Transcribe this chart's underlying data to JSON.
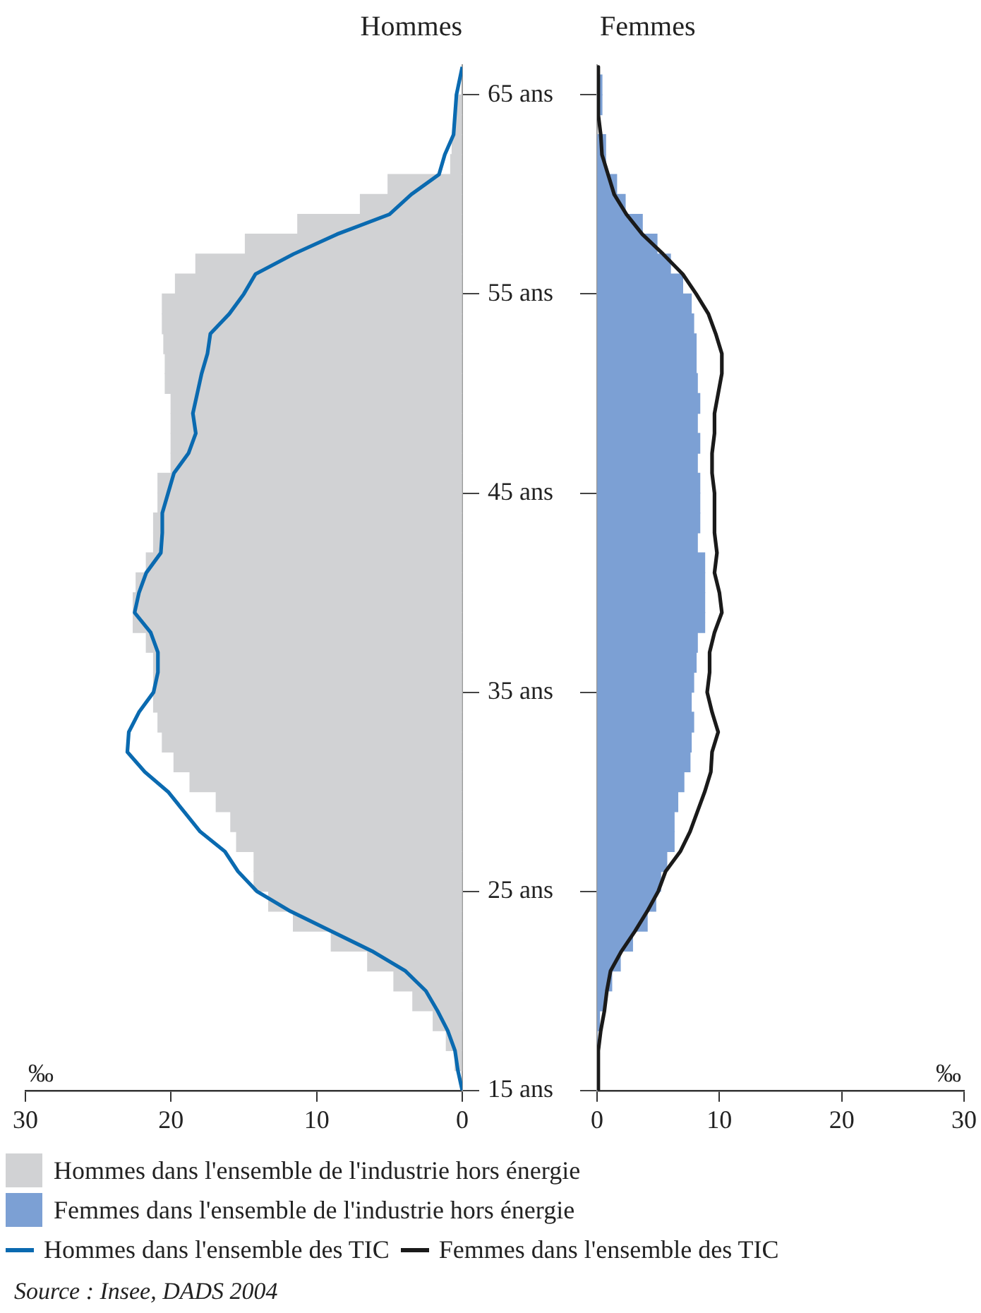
{
  "chart_data": [
    {
      "type": "bar",
      "orientation": "horizontal",
      "title": "Hommes",
      "xlabel": "‰",
      "xlim": [
        30,
        0
      ],
      "xticks": [
        0,
        10,
        20,
        30
      ],
      "ylim": [
        15,
        66.5
      ],
      "yticks": [
        {
          "value": 15,
          "label": "15 ans"
        },
        {
          "value": 25,
          "label": "25 ans"
        },
        {
          "value": 35,
          "label": "35 ans"
        },
        {
          "value": 45,
          "label": "45 ans"
        },
        {
          "value": 55,
          "label": "55 ans"
        },
        {
          "value": 65,
          "label": "65 ans"
        }
      ],
      "legend": "bottom",
      "marker": "none",
      "x": [
        64.5,
        63.5,
        62.5,
        61.5,
        60.5,
        59.5,
        58.5,
        57.5,
        56.5,
        55.5,
        54.5,
        53.5,
        52.5,
        51.5,
        50.5,
        49.5,
        48.5,
        47.5,
        46.5,
        45.5,
        44.5,
        43.5,
        42.5,
        41.5,
        40.5,
        39.5,
        38.5,
        37.5,
        36.5,
        35.5,
        34.5,
        33.5,
        32.5,
        31.5,
        30.5,
        29.5,
        28.5,
        27.5,
        26.5,
        25.5,
        24.5,
        23.5,
        22.5,
        21.5,
        20.5,
        19.5,
        18.5,
        17.5,
        16.5
      ],
      "series": [
        {
          "name": "Hommes dans l'ensemble de l'industrie hors énergie",
          "color": "#d1d2d4",
          "values": [
            0.5,
            0.6,
            0.7,
            0.8,
            5.1,
            7.0,
            11.3,
            14.9,
            18.3,
            19.7,
            20.6,
            20.6,
            20.5,
            20.4,
            20.4,
            20.0,
            20.0,
            20.0,
            20.0,
            20.9,
            20.9,
            21.2,
            21.2,
            21.7,
            22.4,
            22.6,
            22.6,
            21.7,
            21.2,
            21.2,
            21.2,
            20.9,
            20.6,
            19.8,
            18.7,
            16.9,
            15.9,
            15.5,
            14.3,
            14.3,
            13.3,
            11.6,
            9.0,
            6.5,
            4.7,
            3.4,
            2.0,
            1.1,
            0.5
          ]
        },
        {
          "type": "line",
          "name": "Hommes dans l'ensemble des TIC",
          "color": "#0a6ab0",
          "x": [
            66.4,
            65,
            64,
            63,
            62,
            61,
            60,
            59,
            58,
            57,
            56,
            55,
            54,
            53,
            52,
            51,
            50,
            49,
            48,
            47,
            46,
            45,
            44,
            43,
            42,
            41,
            40,
            39,
            38,
            37,
            36,
            35,
            34,
            33,
            32,
            31,
            30,
            29,
            28,
            27,
            26,
            25,
            24,
            23,
            22,
            21,
            20,
            19,
            18,
            17,
            16,
            15
          ],
          "values": [
            0.0,
            0.4,
            0.5,
            0.6,
            1.2,
            1.6,
            3.5,
            5.0,
            8.6,
            11.6,
            14.2,
            15.0,
            16.0,
            17.3,
            17.5,
            17.9,
            18.2,
            18.5,
            18.3,
            18.8,
            19.8,
            20.2,
            20.6,
            20.6,
            20.7,
            21.7,
            22.2,
            22.5,
            21.4,
            20.9,
            20.9,
            21.2,
            22.2,
            22.9,
            23.0,
            21.8,
            20.2,
            19.1,
            18.0,
            16.3,
            15.4,
            14.1,
            11.8,
            9.0,
            6.2,
            3.9,
            2.5,
            1.7,
            1.0,
            0.5,
            0.3,
            0.0
          ]
        }
      ],
      "annotations": [
        "Source : Insee, DADS 2004"
      ]
    },
    {
      "type": "bar",
      "orientation": "horizontal",
      "title": "Femmes",
      "xlabel": "‰",
      "xlim": [
        0,
        30
      ],
      "xticks": [
        0,
        10,
        20,
        30
      ],
      "ylim": [
        15,
        66.5
      ],
      "yticks": [
        {
          "value": 15,
          "label": null
        },
        {
          "value": 25,
          "label": null
        },
        {
          "value": 35,
          "label": null
        },
        {
          "value": 45,
          "label": null
        },
        {
          "value": 55,
          "label": null
        },
        {
          "value": 65,
          "label": null
        }
      ],
      "legend": "bottom",
      "marker": "none",
      "tick_labels": "x",
      "x": [
        65.5,
        64.5,
        63.5,
        62.5,
        61.5,
        60.5,
        59.5,
        58.5,
        57.5,
        56.5,
        55.5,
        54.5,
        53.5,
        52.5,
        51.5,
        50.5,
        49.5,
        48.5,
        47.5,
        46.5,
        45.5,
        44.5,
        43.5,
        42.5,
        41.5,
        40.5,
        39.5,
        38.5,
        37.5,
        36.5,
        35.5,
        34.5,
        33.5,
        32.5,
        31.5,
        30.5,
        29.5,
        28.5,
        27.5,
        26.5,
        25.5,
        24.5,
        23.5,
        22.5,
        21.5,
        20.5,
        19.5,
        18.5,
        17.5,
        16.5,
        15.5
      ],
      "series": [
        {
          "name": "Femmes dans l'ensemble de l'industrie hors énergie",
          "color": "#7ca0d4",
          "values": [
            0.4,
            0.4,
            null,
            0.7,
            0.7,
            1.6,
            2.3,
            3.7,
            4.9,
            6.0,
            7.0,
            7.7,
            7.9,
            8.1,
            8.1,
            8.2,
            8.4,
            8.2,
            8.4,
            8.2,
            8.4,
            8.4,
            8.4,
            8.2,
            8.8,
            8.8,
            8.8,
            8.8,
            8.2,
            8.1,
            7.9,
            7.7,
            7.9,
            7.7,
            7.6,
            7.1,
            6.6,
            6.3,
            6.3,
            5.7,
            5.2,
            4.8,
            4.1,
            2.9,
            1.9,
            1.2,
            0.6,
            0.2,
            0,
            0,
            0
          ]
        },
        {
          "type": "line",
          "name": "Femmes dans l'ensemble des TIC",
          "color": "#1a1a1a",
          "x": [
            66.4,
            65,
            64,
            63,
            62,
            61,
            60,
            59,
            58,
            57,
            56,
            55,
            54,
            53,
            52,
            51,
            50,
            49,
            48,
            47,
            46,
            45,
            44,
            43,
            42,
            41,
            40,
            39,
            38,
            37,
            36,
            35,
            34,
            33,
            32,
            31,
            30,
            29,
            28,
            27,
            26,
            25,
            24,
            23,
            22,
            21,
            20,
            19,
            18,
            17,
            16,
            15
          ],
          "values": [
            0.1,
            0.1,
            0.1,
            0.3,
            0.4,
            0.9,
            1.4,
            2.4,
            3.7,
            5.4,
            7.0,
            8.1,
            9.1,
            9.7,
            10.2,
            10.2,
            9.9,
            9.6,
            9.6,
            9.4,
            9.4,
            9.6,
            9.6,
            9.6,
            9.8,
            9.6,
            10.0,
            10.2,
            9.6,
            9.2,
            9.2,
            9.0,
            9.4,
            9.9,
            9.4,
            9.3,
            8.8,
            8.2,
            7.6,
            6.8,
            5.6,
            5.0,
            4.1,
            3.1,
            2.0,
            1.1,
            0.8,
            0.6,
            0.3,
            0.1,
            0.1,
            0.1
          ]
        }
      ]
    }
  ]
}
